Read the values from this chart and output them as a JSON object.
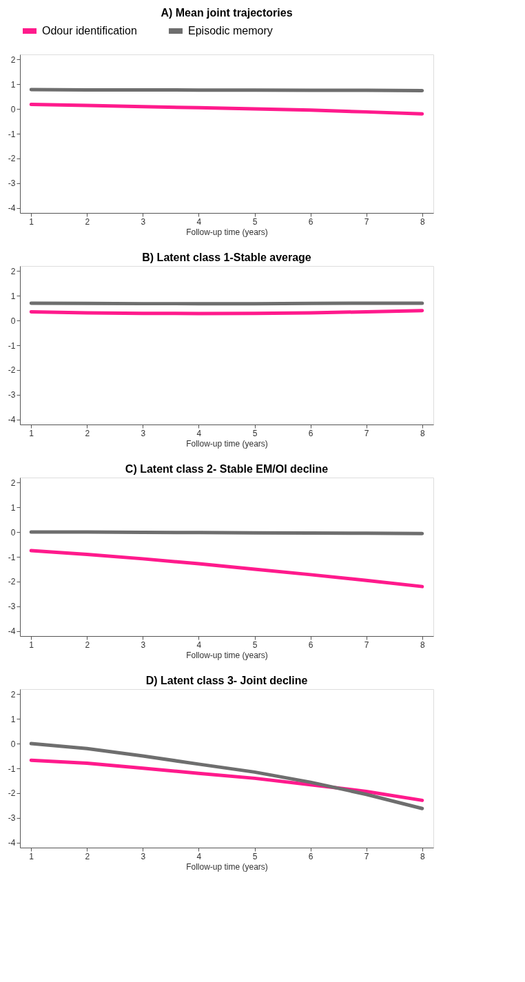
{
  "chart_data": [
    {
      "type": "line",
      "title": "A) Mean joint trajectories",
      "xlabel": "Follow-up time (years)",
      "x": [
        1,
        2,
        3,
        4,
        5,
        6,
        7,
        8
      ],
      "legend": "top",
      "marker": "none",
      "line_style": "solid",
      "grid": false,
      "series": [
        {
          "name": "Odour identification",
          "color": "#ff1a8c",
          "values": [
            0.18,
            0.14,
            0.09,
            0.05,
            0.0,
            -0.05,
            -0.12,
            -0.2
          ]
        },
        {
          "name": "Episodic memory",
          "color": "#6e6e6e",
          "values": [
            0.78,
            0.77,
            0.77,
            0.76,
            0.76,
            0.75,
            0.75,
            0.74
          ]
        }
      ],
      "xlim": [
        0.8,
        8.2
      ],
      "xticks": [
        1,
        2,
        3,
        4,
        5,
        6,
        7,
        8
      ],
      "ylim": [
        -4.2,
        2.2
      ],
      "yticks": [
        -4,
        -3,
        -2,
        -1,
        0,
        1,
        2
      ]
    },
    {
      "type": "line",
      "title": "B) Latent class 1-Stable average",
      "xlabel": "Follow-up time (years)",
      "x": [
        1,
        2,
        3,
        4,
        5,
        6,
        7,
        8
      ],
      "marker": "none",
      "line_style": "solid",
      "grid": false,
      "series": [
        {
          "color": "#ff1a8c",
          "values": [
            0.35,
            0.31,
            0.29,
            0.28,
            0.29,
            0.31,
            0.35,
            0.4
          ]
        },
        {
          "color": "#6e6e6e",
          "values": [
            0.7,
            0.69,
            0.68,
            0.68,
            0.68,
            0.69,
            0.7,
            0.7
          ]
        }
      ],
      "xlim": [
        0.8,
        8.2
      ],
      "xticks": [
        1,
        2,
        3,
        4,
        5,
        6,
        7,
        8
      ],
      "ylim": [
        -4.2,
        2.2
      ],
      "yticks": [
        -4,
        -3,
        -2,
        -1,
        0,
        1,
        2
      ]
    },
    {
      "type": "line",
      "title": "C) Latent class 2- Stable EM/OI decline",
      "xlabel": "Follow-up time (years)",
      "x": [
        1,
        2,
        3,
        4,
        5,
        6,
        7,
        8
      ],
      "marker": "none",
      "line_style": "solid",
      "grid": false,
      "series": [
        {
          "color": "#ff1a8c",
          "values": [
            -0.75,
            -0.9,
            -1.08,
            -1.28,
            -1.5,
            -1.72,
            -1.95,
            -2.2
          ]
        },
        {
          "color": "#6e6e6e",
          "values": [
            0.0,
            0.0,
            -0.01,
            -0.02,
            -0.03,
            -0.04,
            -0.05,
            -0.06
          ]
        }
      ],
      "xlim": [
        0.8,
        8.2
      ],
      "xticks": [
        1,
        2,
        3,
        4,
        5,
        6,
        7,
        8
      ],
      "ylim": [
        -4.2,
        2.2
      ],
      "yticks": [
        -4,
        -3,
        -2,
        -1,
        0,
        1,
        2
      ]
    },
    {
      "type": "line",
      "title": "D) Latent class 3- Joint decline",
      "xlabel": "Follow-up time (years)",
      "x": [
        1,
        2,
        3,
        4,
        5,
        6,
        7,
        8
      ],
      "marker": "none",
      "line_style": "solid",
      "grid": false,
      "series": [
        {
          "color": "#ff1a8c",
          "values": [
            -0.67,
            -0.79,
            -0.99,
            -1.2,
            -1.4,
            -1.66,
            -1.93,
            -2.29
          ]
        },
        {
          "color": "#6e6e6e",
          "values": [
            0.0,
            -0.2,
            -0.5,
            -0.83,
            -1.15,
            -1.56,
            -2.05,
            -2.62
          ]
        }
      ],
      "xlim": [
        0.8,
        8.2
      ],
      "xticks": [
        1,
        2,
        3,
        4,
        5,
        6,
        7,
        8
      ],
      "ylim": [
        -4.2,
        2.2
      ],
      "yticks": [
        -4,
        -3,
        -2,
        -1,
        0,
        1,
        2
      ]
    }
  ]
}
